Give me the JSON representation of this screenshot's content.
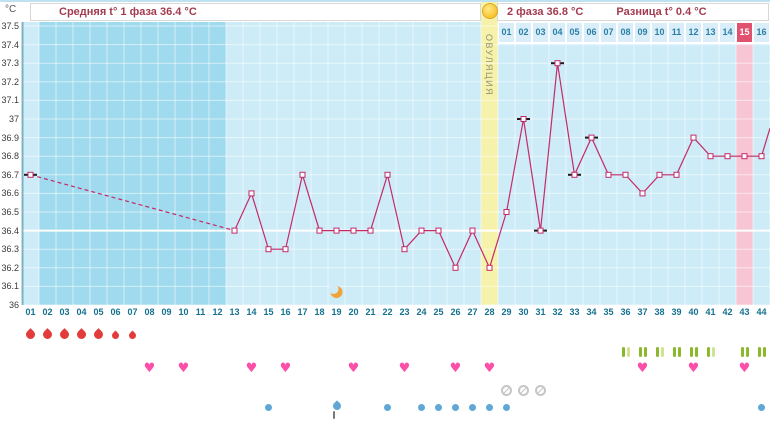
{
  "header": {
    "unit_label": "°C",
    "phase1_label": "Средняя t° 1 фаза 36.4 °C",
    "phase2_label": "2 фаза 36.8 °C",
    "diff_label": "Разница t° 0.4 °C",
    "ovulation_label": "ОВУЛЯЦИЯ",
    "phase2_days": [
      "01",
      "02",
      "03",
      "04",
      "05",
      "06",
      "07",
      "08",
      "09",
      "10",
      "11",
      "12",
      "13",
      "14",
      "15",
      "16"
    ],
    "phase2_highlight_day": 15
  },
  "chart_data": {
    "type": "line",
    "title": "Basal body temperature cycle chart",
    "ylabel": "°C",
    "ylim": [
      36.0,
      37.5
    ],
    "ytick_step": 0.1,
    "ytick_labels": [
      "37.5",
      "37.4",
      "37.3",
      "37.2",
      "37.1",
      "37",
      "36.9",
      "36.8",
      "36.7",
      "36.6",
      "36.5",
      "36.4",
      "36.3",
      "36.2",
      "36.1",
      "36"
    ],
    "x_days": [
      "01",
      "02",
      "03",
      "04",
      "05",
      "06",
      "07",
      "08",
      "09",
      "10",
      "11",
      "12",
      "13",
      "14",
      "15",
      "16",
      "17",
      "18",
      "19",
      "20",
      "21",
      "22",
      "23",
      "24",
      "25",
      "26",
      "27",
      "28",
      "29",
      "30",
      "31",
      "32",
      "33",
      "34",
      "35",
      "36",
      "37",
      "38",
      "39",
      "40",
      "41",
      "42",
      "43",
      "44"
    ],
    "coverline": 36.4,
    "ovulation_day": 28,
    "highlight_cycle_day": 43,
    "phase1_average": 36.4,
    "phase2_average": 36.8,
    "difference": 0.4,
    "moon_day": 19,
    "dashed_segment": [
      1,
      13
    ],
    "trailing_rise": true,
    "series": [
      {
        "name": "temperature",
        "points": [
          {
            "day": 1,
            "t": 36.7,
            "excluded": true
          },
          {
            "day": 13,
            "t": 36.4
          },
          {
            "day": 14,
            "t": 36.6
          },
          {
            "day": 15,
            "t": 36.3
          },
          {
            "day": 16,
            "t": 36.3
          },
          {
            "day": 17,
            "t": 36.7
          },
          {
            "day": 18,
            "t": 36.4
          },
          {
            "day": 19,
            "t": 36.4
          },
          {
            "day": 20,
            "t": 36.4
          },
          {
            "day": 21,
            "t": 36.4
          },
          {
            "day": 22,
            "t": 36.7
          },
          {
            "day": 23,
            "t": 36.3
          },
          {
            "day": 24,
            "t": 36.4
          },
          {
            "day": 25,
            "t": 36.4
          },
          {
            "day": 26,
            "t": 36.2
          },
          {
            "day": 27,
            "t": 36.4
          },
          {
            "day": 28,
            "t": 36.2
          },
          {
            "day": 29,
            "t": 36.5
          },
          {
            "day": 30,
            "t": 37.0,
            "excluded": true
          },
          {
            "day": 31,
            "t": 36.4,
            "excluded": true
          },
          {
            "day": 32,
            "t": 37.3,
            "excluded": true
          },
          {
            "day": 33,
            "t": 36.7,
            "excluded": true
          },
          {
            "day": 34,
            "t": 36.9,
            "excluded": true
          },
          {
            "day": 35,
            "t": 36.7
          },
          {
            "day": 36,
            "t": 36.7
          },
          {
            "day": 37,
            "t": 36.6
          },
          {
            "day": 38,
            "t": 36.7
          },
          {
            "day": 39,
            "t": 36.7
          },
          {
            "day": 40,
            "t": 36.9
          },
          {
            "day": 41,
            "t": 36.8
          },
          {
            "day": 42,
            "t": 36.8
          },
          {
            "day": 43,
            "t": 36.8
          },
          {
            "day": 44,
            "t": 36.8
          }
        ]
      }
    ]
  },
  "icons": {
    "menstruation": {
      "days": [
        1,
        2,
        3,
        4,
        5,
        6,
        7
      ],
      "small_days": [
        6,
        7
      ]
    },
    "ovulation_tests": {
      "entries": [
        {
          "day": 36,
          "bars": [
            "dark",
            "light"
          ]
        },
        {
          "day": 37,
          "bars": [
            "dark",
            "dark"
          ]
        },
        {
          "day": 38,
          "bars": [
            "dark",
            "light"
          ]
        },
        {
          "day": 39,
          "bars": [
            "dark",
            "dark"
          ]
        },
        {
          "day": 40,
          "bars": [
            "dark",
            "dark"
          ]
        },
        {
          "day": 41,
          "bars": [
            "dark",
            "light"
          ]
        },
        {
          "day": 43,
          "bars": [
            "dark",
            "dark"
          ]
        },
        {
          "day": 44,
          "bars": [
            "dark",
            "dark"
          ]
        }
      ]
    },
    "intercourse": {
      "glyph": "♥",
      "days": [
        8,
        10,
        14,
        16,
        20,
        23,
        26,
        28,
        37,
        40,
        43
      ]
    },
    "no_data": {
      "days": [
        29,
        30,
        31
      ]
    },
    "discharge": {
      "entries": [
        {
          "day": 15,
          "shape": "dot"
        },
        {
          "day": 19,
          "shape": "drop"
        },
        {
          "day": 22,
          "shape": "dot"
        },
        {
          "day": 24,
          "shape": "dot"
        },
        {
          "day": 25,
          "shape": "dot"
        },
        {
          "day": 26,
          "shape": "dot"
        },
        {
          "day": 27,
          "shape": "dot"
        },
        {
          "day": 28,
          "shape": "dot"
        },
        {
          "day": 29,
          "shape": "dot"
        },
        {
          "day": 44,
          "shape": "dot"
        }
      ]
    }
  },
  "colors": {
    "line": "#c42a68",
    "chart_bg": "#9fdaee",
    "measured_col": "#cdecf8",
    "ovulation_col": "#f6f2ab",
    "highlight_col": "#f8c5d5",
    "coverline": "#ffffff",
    "excluded_marker": "#1c1c1c",
    "menstruation": "#e23b3b",
    "intercourse": "#fb4fa8",
    "discharge": "#5fa8d6",
    "test_dark": "#8cb82b",
    "test_light": "#cfe394",
    "header_text": "#a23b4f",
    "day_text": "#15718f",
    "highlight_cell": "#e0526e",
    "moon": "#f0a339"
  }
}
